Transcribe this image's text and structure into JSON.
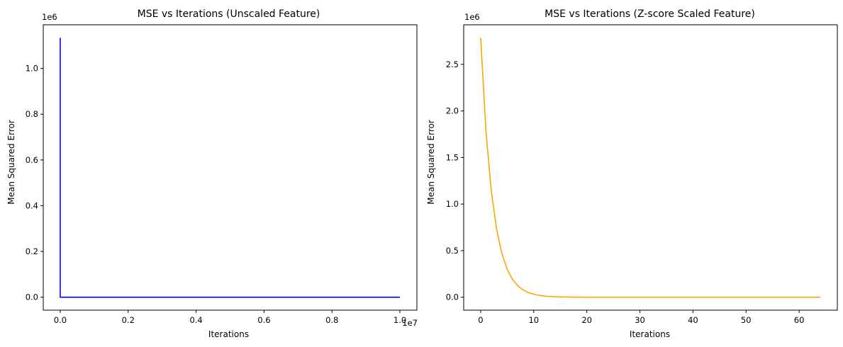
{
  "chart_data": [
    {
      "type": "line",
      "title": "MSE vs Iterations (Unscaled Feature)",
      "xlabel": "Iterations",
      "ylabel": "Mean Squared Error",
      "x_offset_label": "1e7",
      "y_offset_label": "1e6",
      "xlim": [
        -500000,
        10500000
      ],
      "ylim": [
        -56700,
        1190700
      ],
      "xticks": [
        0,
        2000000,
        4000000,
        6000000,
        8000000,
        10000000
      ],
      "xtick_labels": [
        "0.0",
        "0.2",
        "0.4",
        "0.6",
        "0.8",
        "1.0"
      ],
      "yticks": [
        0,
        200000,
        400000,
        600000,
        800000,
        1000000
      ],
      "ytick_labels": [
        "0.0",
        "0.2",
        "0.4",
        "0.6",
        "0.8",
        "1.0"
      ],
      "color": "#0000ff",
      "grid": false,
      "series": [
        {
          "x": [
            0,
            0,
            10000000
          ],
          "y": [
            1134000,
            0,
            0
          ]
        }
      ]
    },
    {
      "type": "line",
      "title": "MSE vs Iterations (Z-score Scaled Feature)",
      "xlabel": "Iterations",
      "ylabel": "Mean Squared Error",
      "y_offset_label": "1e6",
      "xlim": [
        -3.2,
        67.2
      ],
      "ylim": [
        -139000,
        2925000
      ],
      "xticks": [
        0,
        10,
        20,
        30,
        40,
        50,
        60
      ],
      "xtick_labels": [
        "0",
        "10",
        "20",
        "30",
        "40",
        "50",
        "60"
      ],
      "yticks": [
        0,
        500000,
        1000000,
        1500000,
        2000000,
        2500000
      ],
      "ytick_labels": [
        "0.0",
        "0.5",
        "1.0",
        "1.5",
        "2.0",
        "2.5"
      ],
      "color": "#ffa500",
      "grid": false,
      "series": [
        {
          "x": [
            0,
            1,
            2,
            3,
            4,
            5,
            6,
            7,
            8,
            9,
            10,
            11,
            12,
            13,
            14,
            15,
            16,
            18,
            20,
            22,
            25,
            30,
            35,
            40,
            45,
            50,
            55,
            60,
            64
          ],
          "y": [
            2786000,
            1783000,
            1141000,
            730000,
            467000,
            299000,
            191000,
            122000,
            78000,
            50000,
            32000,
            20500,
            13100,
            8400,
            5400,
            3400,
            2200,
            900,
            370,
            150,
            40,
            5,
            1,
            0,
            0,
            0,
            0,
            0,
            0
          ]
        }
      ]
    }
  ]
}
